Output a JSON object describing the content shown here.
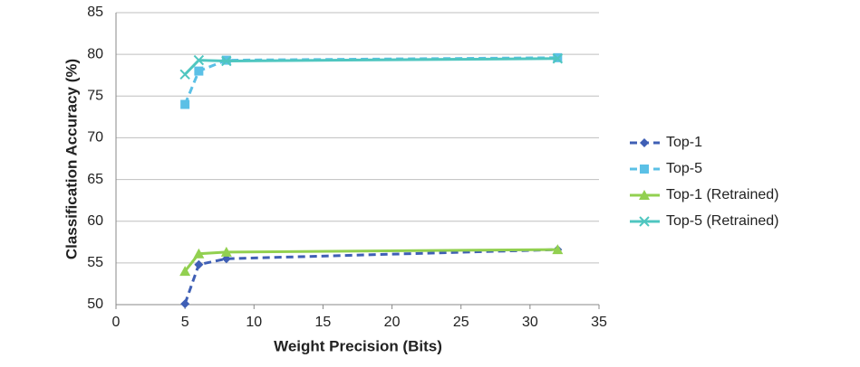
{
  "chart_data": {
    "type": "line",
    "x_label": "Weight Precision (Bits)",
    "y_label": "Classification Accuracy (%)",
    "x": [
      5,
      6,
      8,
      32
    ],
    "series": [
      {
        "name": "Top-1",
        "color": "#3f5fb5",
        "dashed": true,
        "marker": "diamond",
        "values": [
          50.1,
          54.8,
          55.5,
          56.6
        ]
      },
      {
        "name": "Top-5",
        "color": "#5bc0e6",
        "dashed": true,
        "marker": "square",
        "values": [
          74,
          78,
          79.3,
          79.6
        ]
      },
      {
        "name": "Top-1 (Retrained)",
        "color": "#92d050",
        "dashed": false,
        "marker": "triangle",
        "values": [
          54,
          56.1,
          56.3,
          56.6
        ]
      },
      {
        "name": "Top-5 (Retrained)",
        "color": "#4fc6c0",
        "dashed": false,
        "marker": "x",
        "values": [
          77.6,
          79.3,
          79.2,
          79.5
        ]
      }
    ],
    "xlim": [
      0,
      35
    ],
    "xticks": [
      0,
      5,
      10,
      15,
      20,
      25,
      30,
      35
    ],
    "ylim": [
      50,
      85
    ],
    "yticks": [
      50,
      55,
      60,
      65,
      70,
      75,
      80,
      85
    ],
    "grid": true,
    "legend": "right"
  }
}
